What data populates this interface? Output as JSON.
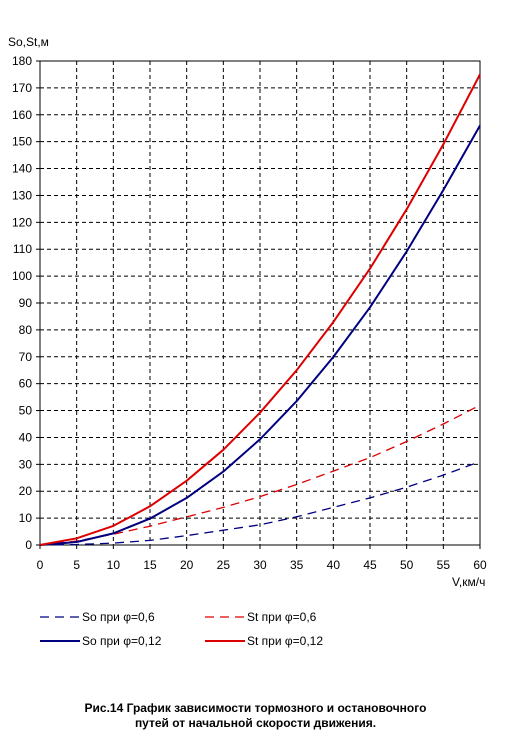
{
  "chart_data": {
    "type": "line",
    "title": "",
    "xlabel": "V,км/ч",
    "ylabel": "So,St,м",
    "xlim": [
      0,
      60
    ],
    "ylim": [
      0,
      180
    ],
    "xticks": [
      0,
      5,
      10,
      15,
      20,
      25,
      30,
      35,
      40,
      45,
      50,
      55,
      60
    ],
    "yticks": [
      0,
      10,
      20,
      30,
      40,
      50,
      60,
      70,
      80,
      90,
      100,
      110,
      120,
      130,
      140,
      150,
      160,
      170,
      180
    ],
    "grid": true,
    "legend_position": "bottom",
    "x": [
      0,
      5,
      10,
      15,
      20,
      25,
      30,
      35,
      40,
      45,
      50,
      55,
      60
    ],
    "series": [
      {
        "name": "So при φ=0,6",
        "color": "#000080",
        "dash": "dashed",
        "values": [
          0,
          0.2,
          0.7,
          1.7,
          3.5,
          5.5,
          7.5,
          10.5,
          14,
          17.5,
          21.5,
          26,
          31
        ]
      },
      {
        "name": "St при φ=0,6",
        "color": "#dd0000",
        "dash": "dashed",
        "values": [
          0,
          1.5,
          4,
          7,
          10.5,
          14,
          18,
          22.5,
          27.5,
          32.5,
          38.5,
          45,
          52
        ]
      },
      {
        "name": "So при φ=0,12",
        "color": "#000080",
        "dash": "solid",
        "values": [
          0,
          1.1,
          4.3,
          9.8,
          17.5,
          27.3,
          39.3,
          53.5,
          69.9,
          88.4,
          109.2,
          132,
          156
        ]
      },
      {
        "name": "St при φ=0,12",
        "color": "#dd0000",
        "dash": "solid",
        "values": [
          0,
          2.5,
          7.1,
          14.4,
          23.9,
          35.4,
          49.2,
          65,
          82.9,
          102.8,
          124.9,
          149,
          175
        ]
      }
    ]
  },
  "caption": {
    "line1": "Рис.14 График зависимости тормозного и остановочного",
    "line2": "путей от начальной скорости движения."
  }
}
